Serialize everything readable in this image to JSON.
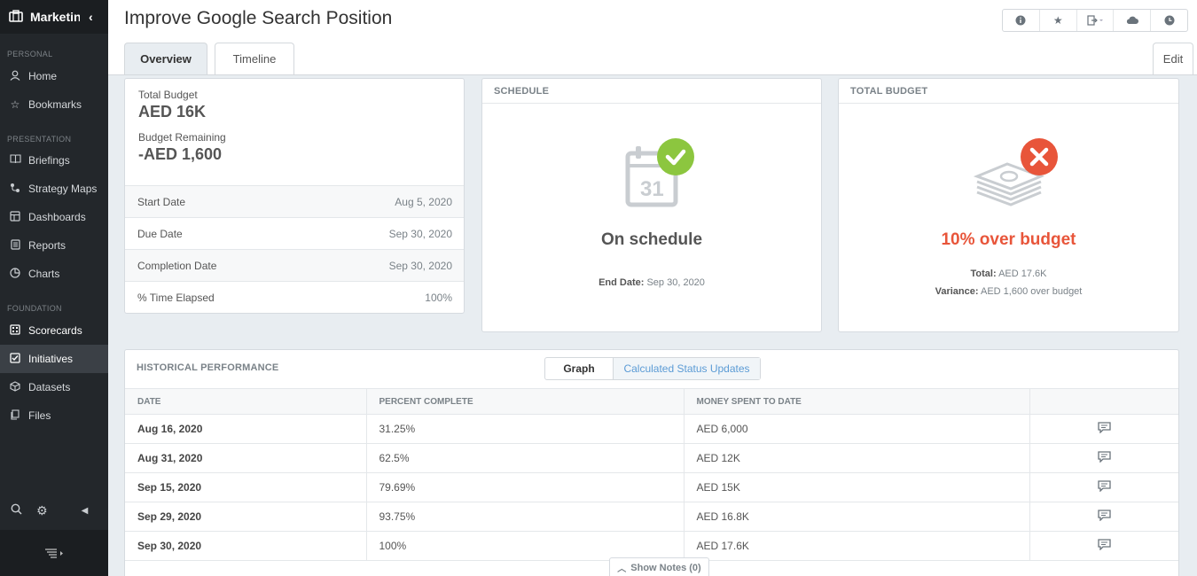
{
  "sidebar": {
    "app_title": "Marketing",
    "sections": {
      "personal": "PERSONAL",
      "presentation": "PRESENTATION",
      "foundation": "FOUNDATION"
    },
    "items": {
      "home": "Home",
      "bookmarks": "Bookmarks",
      "briefings": "Briefings",
      "strategy_maps": "Strategy Maps",
      "dashboards": "Dashboards",
      "reports": "Reports",
      "charts": "Charts",
      "scorecards": "Scorecards",
      "initiatives": "Initiatives",
      "datasets": "Datasets",
      "files": "Files"
    }
  },
  "header": {
    "title": "Improve Google Search Position",
    "tabs": {
      "overview": "Overview",
      "timeline": "Timeline"
    },
    "edit_label": "Edit"
  },
  "budget": {
    "total_label": "Total Budget",
    "total_value": "AED 16K",
    "remaining_label": "Budget Remaining",
    "remaining_value": "-AED 1,600",
    "rows": {
      "start": {
        "label": "Start Date",
        "value": "Aug 5, 2020"
      },
      "due": {
        "label": "Due Date",
        "value": "Sep 30, 2020"
      },
      "completion": {
        "label": "Completion Date",
        "value": "Sep 30, 2020"
      },
      "elapsed": {
        "label": "% Time Elapsed",
        "value": "100%"
      }
    }
  },
  "schedule": {
    "heading": "SCHEDULE",
    "calendar_day": "31",
    "status": "On schedule",
    "end_label": "End Date:",
    "end_value": "Sep 30, 2020",
    "status_color": "#8cc63f"
  },
  "total_budget": {
    "heading": "TOTAL BUDGET",
    "status": "10% over budget",
    "total_label": "Total:",
    "total_value": "AED 17.6K",
    "variance_label": "Variance:",
    "variance_value": "AED 1,600 over budget",
    "status_color": "#e8553a"
  },
  "history": {
    "title": "HISTORICAL PERFORMANCE",
    "toggle": {
      "graph": "Graph",
      "status_updates": "Calculated Status Updates"
    },
    "columns": {
      "date": "DATE",
      "percent": "PERCENT COMPLETE",
      "money": "MONEY SPENT TO DATE"
    },
    "rows": [
      {
        "date": "Aug 16, 2020",
        "percent": "31.25%",
        "money": "AED 6,000"
      },
      {
        "date": "Aug 31, 2020",
        "percent": "62.5%",
        "money": "AED 12K"
      },
      {
        "date": "Sep 15, 2020",
        "percent": "79.69%",
        "money": "AED 15K"
      },
      {
        "date": "Sep 29, 2020",
        "percent": "93.75%",
        "money": "AED 16.8K"
      },
      {
        "date": "Sep 30, 2020",
        "percent": "100%",
        "money": "AED 17.6K"
      }
    ],
    "show_notes": "Show Notes (0)"
  }
}
